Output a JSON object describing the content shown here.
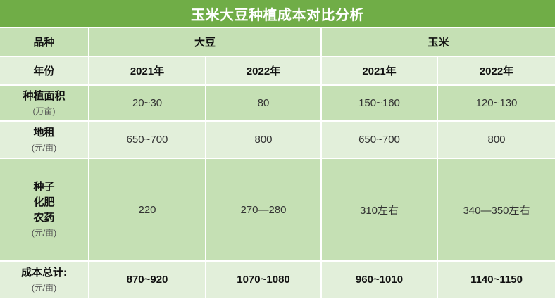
{
  "chart_data": {
    "type": "table",
    "title": "玉米大豆种植成本对比分析",
    "corner_label": "品种",
    "year_label": "年份",
    "groups": [
      {
        "name": "大豆",
        "years": [
          "2021年",
          "2022年"
        ]
      },
      {
        "name": "玉米",
        "years": [
          "2021年",
          "2022年"
        ]
      }
    ],
    "rows": [
      {
        "label_lines": [
          "种植面积"
        ],
        "unit": "(万亩)",
        "values": [
          "20~30",
          "80",
          "150~160",
          "120~130"
        ]
      },
      {
        "label_lines": [
          "地租"
        ],
        "unit": "(元/亩)",
        "values": [
          "650~700",
          "800",
          "650~700",
          "800"
        ]
      },
      {
        "label_lines": [
          "种子",
          "化肥",
          "农药"
        ],
        "unit": "(元/亩)",
        "values": [
          "220",
          "270—280",
          "310左右",
          "340—350左右"
        ]
      },
      {
        "label_lines": [
          "成本总计:"
        ],
        "unit": "(元/亩)",
        "values": [
          "870~920",
          "1070~1080",
          "960~1010",
          "1140~1150"
        ]
      }
    ]
  },
  "colors": {
    "title_bar": "#70ad47",
    "band_dark": "#c5e0b4",
    "band_light": "#e2efda",
    "grid_line": "#ffffff"
  }
}
